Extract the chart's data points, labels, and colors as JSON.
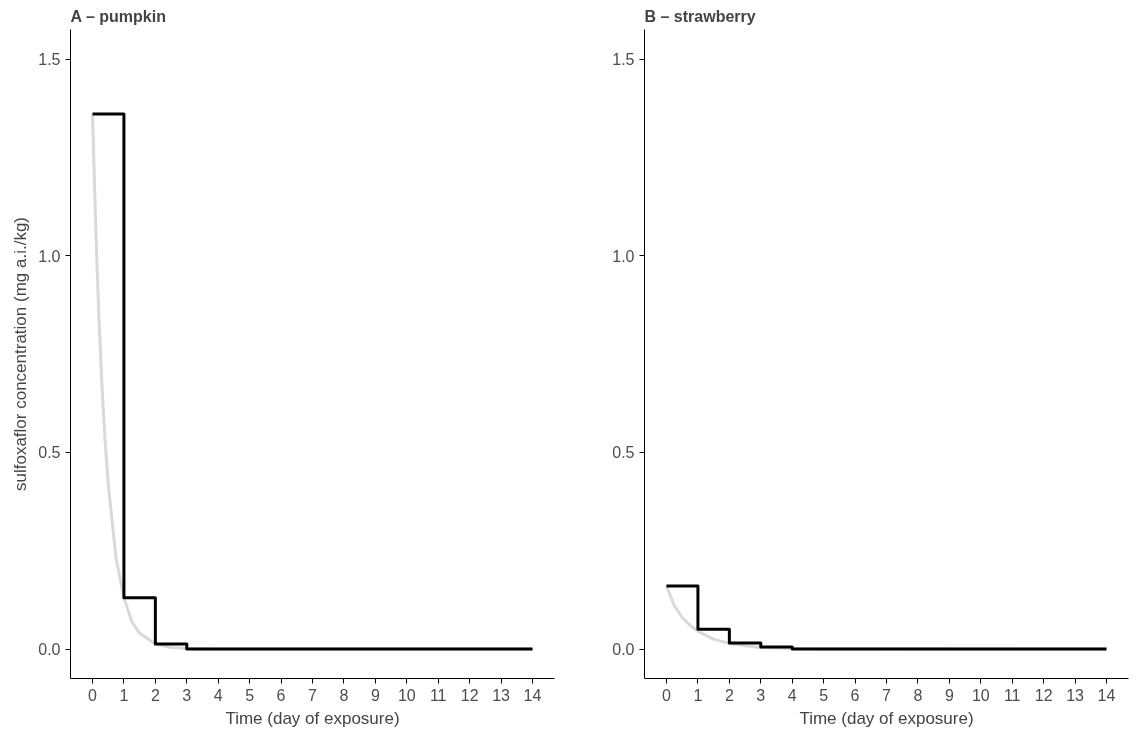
{
  "chart_data": [
    {
      "type": "step",
      "title": "A – pumpkin",
      "xlabel": "Time (day of exposure)",
      "ylabel": "sulfoxaflor concentration (mg a.i./kg)",
      "xlim": [
        -0.7,
        14.7
      ],
      "ylim": [
        -0.075,
        1.575
      ],
      "xticks": [
        0,
        1,
        2,
        3,
        4,
        5,
        6,
        7,
        8,
        9,
        10,
        11,
        12,
        13,
        14
      ],
      "yticks": [
        {
          "value": 0,
          "label": "0.0"
        },
        {
          "value": 0.5,
          "label": "0.5"
        },
        {
          "value": 1,
          "label": "1.0"
        },
        {
          "value": 1.5,
          "label": "1.5"
        }
      ],
      "grid": false,
      "series": [
        {
          "type": "line",
          "color": "#d9d9d9",
          "x": [
            0,
            0.1,
            0.2,
            0.3,
            0.4,
            0.5,
            0.75,
            1,
            1.25,
            1.5,
            2,
            2.5,
            3,
            4,
            14
          ],
          "values": [
            1.36,
            1.08,
            0.85,
            0.67,
            0.53,
            0.42,
            0.23,
            0.13,
            0.07,
            0.04,
            0.013,
            0.004,
            0.001,
            0,
            0
          ]
        },
        {
          "color": "#000000",
          "x": [
            0,
            1,
            2,
            3,
            4,
            5,
            6,
            7,
            8,
            9,
            10,
            11,
            12,
            13,
            14
          ],
          "values": [
            1.36,
            0.13,
            0.013,
            0,
            0,
            0,
            0,
            0,
            0,
            0,
            0,
            0,
            0,
            0,
            0
          ]
        }
      ]
    },
    {
      "type": "step",
      "title": "B – strawberry",
      "xlabel": "Time (day of exposure)",
      "xlim": [
        -0.7,
        14.7
      ],
      "ylim": [
        -0.075,
        1.575
      ],
      "xticks": [
        0,
        1,
        2,
        3,
        4,
        5,
        6,
        7,
        8,
        9,
        10,
        11,
        12,
        13,
        14
      ],
      "yticks": [
        {
          "value": 0,
          "label": "0.0"
        },
        {
          "value": 0.5,
          "label": "0.5"
        },
        {
          "value": 1,
          "label": "1.0"
        },
        {
          "value": 1.5,
          "label": "1.5"
        }
      ],
      "grid": false,
      "series": [
        {
          "type": "line",
          "color": "#d9d9d9",
          "x": [
            0,
            0.25,
            0.5,
            0.75,
            1,
            1.5,
            2,
            2.5,
            3,
            4,
            14
          ],
          "values": [
            0.16,
            0.11,
            0.08,
            0.06,
            0.045,
            0.025,
            0.014,
            0.008,
            0.004,
            0.001,
            0
          ]
        },
        {
          "color": "#000000",
          "x": [
            0,
            1,
            2,
            3,
            4,
            5,
            6,
            7,
            8,
            9,
            10,
            11,
            12,
            13,
            14
          ],
          "values": [
            0.16,
            0.05,
            0.015,
            0.005,
            0,
            0,
            0,
            0,
            0,
            0,
            0,
            0,
            0,
            0,
            0
          ]
        }
      ]
    }
  ]
}
